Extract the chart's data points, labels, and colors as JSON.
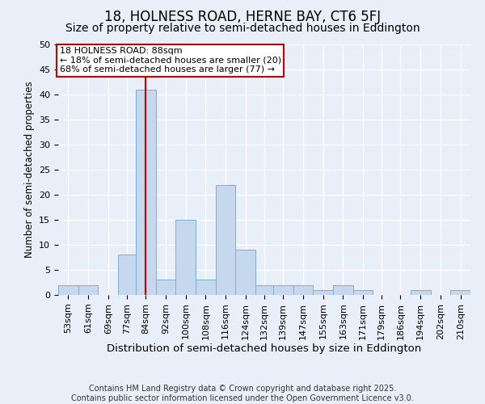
{
  "title": "18, HOLNESS ROAD, HERNE BAY, CT6 5FJ",
  "subtitle": "Size of property relative to semi-detached houses in Eddington",
  "xlabel": "Distribution of semi-detached houses by size in Eddington",
  "ylabel": "Number of semi-detached properties",
  "bins": [
    53,
    61,
    69,
    77,
    84,
    92,
    100,
    108,
    116,
    124,
    132,
    139,
    147,
    155,
    163,
    171,
    179,
    186,
    194,
    202,
    210
  ],
  "values": [
    2,
    2,
    0,
    8,
    41,
    3,
    15,
    3,
    22,
    9,
    2,
    2,
    2,
    1,
    2,
    1,
    0,
    0,
    1,
    0,
    1
  ],
  "bar_color": "#c5d8ee",
  "bar_edge_color": "#7bafd4",
  "vline_color": "#cc0000",
  "vline_x": 88,
  "annotation_title": "18 HOLNESS ROAD: 88sqm",
  "annotation_line1": "← 18% of semi-detached houses are smaller (20)",
  "annotation_line2": "68% of semi-detached houses are larger (77) →",
  "annotation_box_color": "#ffffff",
  "annotation_border_color": "#cc0000",
  "ylim": [
    0,
    50
  ],
  "yticks": [
    0,
    5,
    10,
    15,
    20,
    25,
    30,
    35,
    40,
    45,
    50
  ],
  "bg_color": "#e8eff8",
  "plot_bg_color": "#e8eff8",
  "grid_color": "#ffffff",
  "footer": "Contains HM Land Registry data © Crown copyright and database right 2025.\nContains public sector information licensed under the Open Government Licence v3.0.",
  "title_fontsize": 12,
  "subtitle_fontsize": 10,
  "xlabel_fontsize": 9.5,
  "ylabel_fontsize": 8.5,
  "tick_fontsize": 8,
  "footer_fontsize": 7,
  "annotation_fontsize": 8
}
